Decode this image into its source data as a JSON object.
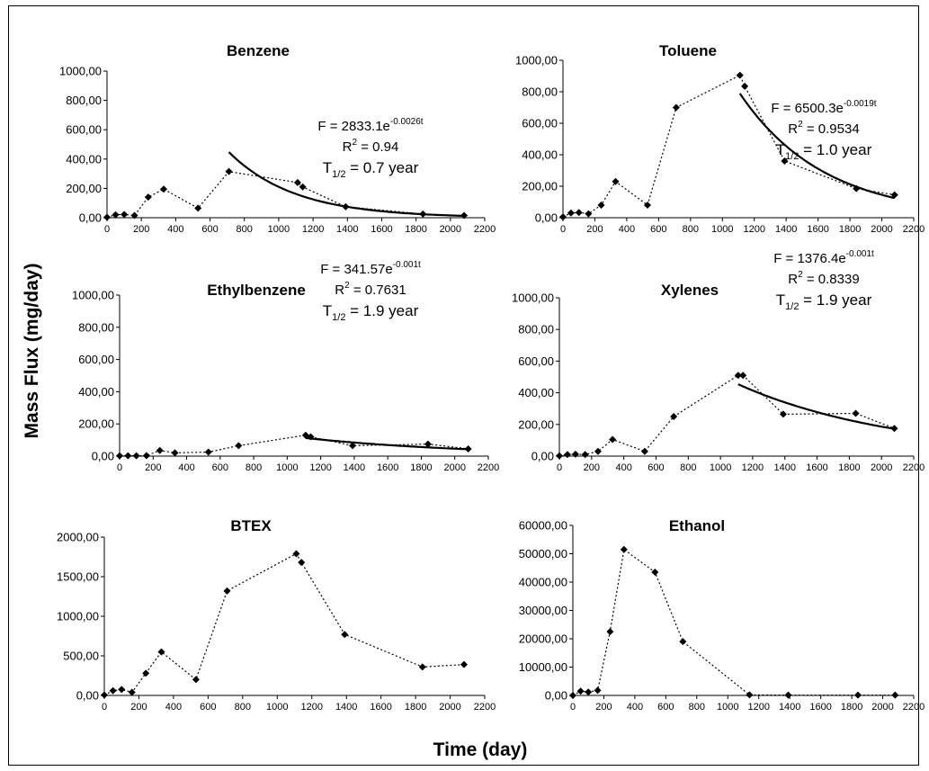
{
  "global": {
    "ylabel": "Mass Flux (mg/day)",
    "xlabel": "Time (day)"
  },
  "colors": {
    "line": "#000000",
    "marker": "#000000",
    "background": "#ffffff"
  },
  "chart_data": [
    {
      "type": "scatter",
      "title": "Benzene",
      "x": [
        0,
        50,
        100,
        160,
        240,
        330,
        530,
        710,
        1110,
        1140,
        1390,
        1840,
        2080
      ],
      "y": [
        3,
        20,
        22,
        15,
        140,
        195,
        65,
        315,
        240,
        210,
        75,
        25,
        15
      ],
      "xlim": [
        0,
        2200
      ],
      "xticks": [
        0,
        200,
        400,
        600,
        800,
        1000,
        1200,
        1400,
        1600,
        1800,
        2000,
        2200
      ],
      "ylim": [
        0,
        1000
      ],
      "yticks": [
        0,
        200,
        400,
        600,
        800,
        1000
      ],
      "ytick_labels": [
        "0,00",
        "200,00",
        "400,00",
        "600,00",
        "800,00",
        "1000,00"
      ],
      "fit": {
        "a": 2833.1,
        "k": 0.0026,
        "x_start": 710,
        "x_end": 2080
      },
      "annotation": {
        "eq_prefix": "F = 2833.1e",
        "eq_exp": "-0.0026t",
        "r2_value": " = 0.94",
        "t_value": " = 0.7 year"
      }
    },
    {
      "type": "scatter",
      "title": "Toluene",
      "x": [
        0,
        50,
        100,
        160,
        240,
        330,
        530,
        710,
        1110,
        1140,
        1390,
        1840,
        2080
      ],
      "y": [
        5,
        30,
        33,
        25,
        80,
        230,
        80,
        700,
        905,
        835,
        360,
        185,
        145
      ],
      "xlim": [
        0,
        2200
      ],
      "xticks": [
        0,
        200,
        400,
        600,
        800,
        1000,
        1200,
        1400,
        1600,
        1800,
        2000,
        2200
      ],
      "ylim": [
        0,
        1000
      ],
      "yticks": [
        0,
        200,
        400,
        600,
        800,
        1000
      ],
      "ytick_labels": [
        "0,00",
        "200,00",
        "400,00",
        "600,00",
        "800,00",
        "1000,00"
      ],
      "fit": {
        "a": 6500.3,
        "k": 0.0019,
        "x_start": 1110,
        "x_end": 2080
      },
      "annotation": {
        "eq_prefix": "F = 6500.3e",
        "eq_exp": "-0.0019t",
        "r2_value": " = 0.9534",
        "t_value": " = 1.0 year"
      }
    },
    {
      "type": "scatter",
      "title": "Ethylbenzene",
      "x": [
        0,
        50,
        100,
        160,
        240,
        330,
        530,
        710,
        1110,
        1140,
        1390,
        1840,
        2080
      ],
      "y": [
        2,
        2,
        2,
        3,
        35,
        20,
        25,
        65,
        130,
        120,
        65,
        75,
        45
      ],
      "xlim": [
        0,
        2200
      ],
      "xticks": [
        0,
        200,
        400,
        600,
        800,
        1000,
        1200,
        1400,
        1600,
        1800,
        2000,
        2200
      ],
      "ylim": [
        0,
        1000
      ],
      "yticks": [
        0,
        200,
        400,
        600,
        800,
        1000
      ],
      "ytick_labels": [
        "0,00",
        "200,00",
        "400,00",
        "600,00",
        "800,00",
        "1000,00"
      ],
      "fit": {
        "a": 341.57,
        "k": 0.001,
        "x_start": 1110,
        "x_end": 2080
      },
      "annotation": {
        "eq_prefix": "F = 341.57e",
        "eq_exp": "-0.001t",
        "r2_value": " = 0.7631",
        "t_value": " = 1.9 year"
      }
    },
    {
      "type": "scatter",
      "title": "Xylenes",
      "x": [
        0,
        50,
        100,
        160,
        240,
        330,
        530,
        710,
        1110,
        1140,
        1390,
        1840,
        2080
      ],
      "y": [
        2,
        10,
        12,
        10,
        30,
        105,
        30,
        250,
        510,
        510,
        265,
        270,
        175
      ],
      "xlim": [
        0,
        2200
      ],
      "xticks": [
        0,
        200,
        400,
        600,
        800,
        1000,
        1200,
        1400,
        1600,
        1800,
        2000,
        2200
      ],
      "ylim": [
        0,
        1000
      ],
      "yticks": [
        0,
        200,
        400,
        600,
        800,
        1000
      ],
      "ytick_labels": [
        "0,00",
        "200,00",
        "400,00",
        "600,00",
        "800,00",
        "1000,00"
      ],
      "fit": {
        "a": 1376.4,
        "k": 0.001,
        "x_start": 1110,
        "x_end": 2080
      },
      "annotation": {
        "eq_prefix": "F = 1376.4e",
        "eq_exp": "-0.001t",
        "r2_value": " = 0.8339",
        "t_value": " = 1.9 year"
      }
    },
    {
      "type": "scatter",
      "title": "BTEX",
      "x": [
        0,
        50,
        100,
        160,
        240,
        330,
        530,
        710,
        1110,
        1140,
        1390,
        1840,
        2080
      ],
      "y": [
        5,
        60,
        75,
        40,
        280,
        550,
        200,
        1320,
        1790,
        1680,
        770,
        360,
        390
      ],
      "xlim": [
        0,
        2200
      ],
      "xticks": [
        0,
        200,
        400,
        600,
        800,
        1000,
        1200,
        1400,
        1600,
        1800,
        2000,
        2200
      ],
      "ylim": [
        0,
        2000
      ],
      "yticks": [
        0,
        500,
        1000,
        1500,
        2000
      ],
      "ytick_labels": [
        "0,00",
        "500,00",
        "1000,00",
        "1500,00",
        "2000,00"
      ]
    },
    {
      "type": "scatter",
      "title": "Ethanol",
      "x": [
        0,
        50,
        100,
        160,
        240,
        330,
        530,
        710,
        1140,
        1390,
        1840,
        2080
      ],
      "y": [
        0,
        1500,
        1200,
        1800,
        22500,
        51500,
        43500,
        19000,
        200,
        100,
        100,
        100
      ],
      "xlim": [
        0,
        2200
      ],
      "xticks": [
        0,
        200,
        400,
        600,
        800,
        1000,
        1200,
        1400,
        1600,
        1800,
        2000,
        2200
      ],
      "ylim": [
        0,
        60000
      ],
      "yticks": [
        0,
        10000,
        20000,
        30000,
        40000,
        50000,
        60000
      ],
      "ytick_labels": [
        "0,00",
        "10000,00",
        "20000,00",
        "30000,00",
        "40000,00",
        "50000,00",
        "60000,00"
      ]
    }
  ]
}
